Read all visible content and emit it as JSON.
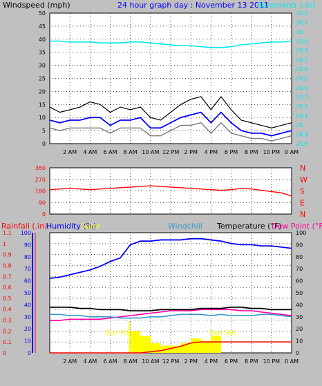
{
  "header": {
    "windspeed_label": "Windspeed (mph)",
    "title": "24 hour graph day : November 13 2011",
    "barometer_label": "Barometer (.in)"
  },
  "colors": {
    "background": "#c0c0c0",
    "plot_bg": "#ffffff",
    "title": "#0000ff",
    "barometer": "#00e8e8",
    "wind_gust": "#000000",
    "wind_avg": "#0000ff",
    "wind_low": "#808080",
    "direction": "#ff0000",
    "compass": "#ff0000",
    "rainfall": "#ff0000",
    "humidity": "#0000ff",
    "solar": "#ffff00",
    "windchill": "#3399cc",
    "temperature": "#000000",
    "dewpoint": "#ff00aa",
    "sun_label": "#ffff00"
  },
  "time_ticks": [
    "2 AM",
    "4 AM",
    "6 AM",
    "8 AM",
    "10 AM",
    "12 PM",
    "2 PM",
    "4 PM",
    "6 PM",
    "8 PM",
    "10 PM",
    "0 AM"
  ],
  "chart_data": [
    {
      "type": "line",
      "name": "wind-barometer",
      "y_left_ticks": [
        "0",
        "5",
        "10",
        "15",
        "20",
        "25",
        "30",
        "35",
        "40",
        "45",
        "50"
      ],
      "ylim_left": [
        0,
        50
      ],
      "y_right_ticks": [
        "28.8",
        "28.9",
        "29",
        "29.1",
        "29.2",
        "29.3",
        "29.4",
        "29.5",
        "29.6",
        "29.7",
        "29.8",
        "29.9",
        "30",
        "30.1",
        "30.2"
      ],
      "ylim_right": [
        28.8,
        30.2
      ],
      "hours": [
        0,
        1,
        2,
        3,
        4,
        5,
        6,
        7,
        8,
        9,
        10,
        11,
        12,
        13,
        14,
        15,
        16,
        17,
        18,
        19,
        20,
        21,
        22,
        23,
        24
      ],
      "gust": [
        14,
        12,
        13,
        14,
        16,
        15,
        12,
        14,
        13,
        14,
        10,
        9,
        12,
        15,
        17,
        18,
        13,
        18,
        13,
        9,
        8,
        7,
        6,
        7,
        8
      ],
      "average": [
        9,
        8,
        9,
        9,
        10,
        10,
        7,
        9,
        9,
        10,
        6,
        6,
        8,
        10,
        11,
        12,
        8,
        12,
        8,
        5,
        4,
        4,
        3,
        4,
        5
      ],
      "low": [
        6,
        5,
        6,
        6,
        6,
        6,
        4,
        6,
        6,
        6,
        3,
        3,
        5,
        7,
        7,
        8,
        4,
        8,
        4,
        3,
        2,
        2,
        1,
        2,
        3
      ],
      "barometer": [
        29.9,
        29.9,
        29.89,
        29.89,
        29.89,
        29.88,
        29.88,
        29.88,
        29.89,
        29.89,
        29.88,
        29.87,
        29.86,
        29.85,
        29.85,
        29.84,
        29.83,
        29.83,
        29.84,
        29.86,
        29.87,
        29.88,
        29.89,
        29.89,
        29.9
      ],
      "grid": true
    },
    {
      "type": "line",
      "name": "wind-direction",
      "y_ticks": [
        "0",
        "90",
        "180",
        "270",
        "360"
      ],
      "ylim": [
        0,
        360
      ],
      "compass_labels": [
        "N",
        "W",
        "S",
        "E",
        "N"
      ],
      "hours": [
        0,
        1,
        2,
        3,
        4,
        5,
        6,
        7,
        8,
        9,
        10,
        11,
        12,
        13,
        14,
        15,
        16,
        17,
        18,
        19,
        20,
        21,
        22,
        23,
        24
      ],
      "direction": [
        190,
        195,
        200,
        195,
        190,
        195,
        200,
        205,
        210,
        215,
        220,
        215,
        210,
        205,
        200,
        195,
        190,
        185,
        190,
        200,
        195,
        185,
        175,
        165,
        140
      ],
      "grid": true
    },
    {
      "type": "line",
      "name": "weather",
      "labels": {
        "rainfall": "Rainfall (.in)",
        "humidity": "Humidity (%)",
        "solar": "Solar",
        "windchill": "Windchill",
        "temperature": "Temperature (°F)",
        "dewpoint": "Dew Point (°F)"
      },
      "y_left_ticks": [
        "0",
        "0.1",
        "0.2",
        "0.3",
        "0.4",
        "0.5",
        "0.6",
        "0.7",
        "0.8",
        "0.9",
        "1",
        "1.1"
      ],
      "ylim_left": [
        0,
        1.1
      ],
      "y_mid_ticks": [
        "0",
        "10",
        "20",
        "30",
        "40",
        "50",
        "60",
        "70",
        "80",
        "90",
        "100"
      ],
      "ylim_mid": [
        0,
        100
      ],
      "y_right_ticks": [
        "0",
        "10",
        "20",
        "30",
        "40",
        "50",
        "60",
        "70",
        "80",
        "90",
        "100"
      ],
      "ylim_right": [
        0,
        100
      ],
      "hours": [
        0,
        1,
        2,
        3,
        4,
        5,
        6,
        7,
        8,
        9,
        10,
        11,
        12,
        13,
        14,
        15,
        16,
        17,
        18,
        19,
        20,
        21,
        22,
        23,
        24
      ],
      "humidity": [
        62,
        63,
        65,
        67,
        69,
        72,
        76,
        79,
        90,
        93,
        93,
        94,
        94,
        94,
        95,
        95,
        94,
        93,
        91,
        90,
        90,
        89,
        89,
        88,
        87
      ],
      "temperature": [
        38,
        38,
        38,
        37,
        37,
        36,
        36,
        36,
        35,
        35,
        35,
        36,
        36,
        36,
        36,
        37,
        37,
        37,
        38,
        38,
        37,
        37,
        36,
        36,
        36
      ],
      "windchill": [
        32,
        32,
        31,
        31,
        30,
        30,
        30,
        29,
        29,
        29,
        30,
        30,
        31,
        32,
        32,
        32,
        31,
        32,
        31,
        31,
        31,
        32,
        32,
        31,
        30
      ],
      "dewpoint": [
        27,
        27,
        28,
        28,
        28,
        28,
        29,
        30,
        31,
        32,
        33,
        34,
        35,
        35,
        35,
        36,
        36,
        36,
        36,
        35,
        35,
        34,
        33,
        32,
        31
      ],
      "rainfall": [
        0,
        0,
        0,
        0,
        0,
        0,
        0,
        0,
        0,
        0,
        0.01,
        0.02,
        0.04,
        0.06,
        0.09,
        0.1,
        0.1,
        0.1,
        0.1,
        0.1,
        0.1,
        0.1,
        0.1,
        0.1,
        0.1
      ],
      "solar": [
        0,
        0,
        0,
        0,
        0,
        0,
        0,
        0,
        18,
        14,
        8,
        6,
        6,
        8,
        12,
        10,
        14,
        0,
        0,
        0,
        0,
        0,
        0,
        0,
        0
      ],
      "annotations": [
        "Sun Rise",
        "Sun Set"
      ],
      "sunrise_hour": 7.9,
      "sunset_hour": 16.7,
      "grid": true
    }
  ]
}
